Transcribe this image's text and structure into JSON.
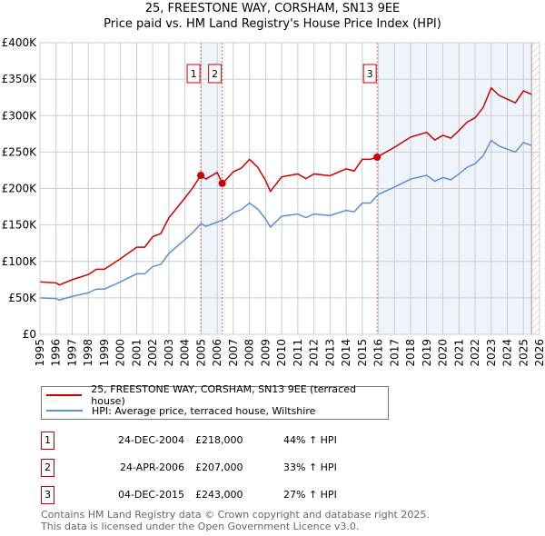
{
  "chart_data": {
    "type": "line",
    "title": "25, FREESTONE WAY, CORSHAM, SN13 9EE",
    "subtitle": "Price paid vs. HM Land Registry's House Price Index (HPI)",
    "xlim": [
      1995,
      2026
    ],
    "ylim": [
      0,
      400000
    ],
    "yticks": [
      {
        "v": 0,
        "label": "£0"
      },
      {
        "v": 50000,
        "label": "£50K"
      },
      {
        "v": 100000,
        "label": "£100K"
      },
      {
        "v": 150000,
        "label": "£150K"
      },
      {
        "v": 200000,
        "label": "£200K"
      },
      {
        "v": 250000,
        "label": "£250K"
      },
      {
        "v": 300000,
        "label": "£300K"
      },
      {
        "v": 350000,
        "label": "£350K"
      },
      {
        "v": 400000,
        "label": "£400K"
      }
    ],
    "xticks": [
      "1995",
      "1996",
      "1997",
      "1998",
      "1999",
      "2000",
      "2001",
      "2002",
      "2003",
      "2004",
      "2005",
      "2006",
      "2007",
      "2008",
      "2009",
      "2010",
      "2011",
      "2012",
      "2013",
      "2014",
      "2015",
      "2016",
      "2017",
      "2018",
      "2019",
      "2020",
      "2021",
      "2022",
      "2023",
      "2024",
      "2025",
      "2026"
    ],
    "grid": true,
    "series": [
      {
        "name": "25, FREESTONE WAY, CORSHAM, SN13 9EE (terraced house)",
        "color": "#cc0000",
        "x": [
          1995,
          1996,
          1996.2,
          1997,
          1998,
          1998.5,
          1999,
          2000,
          2001,
          2001.5,
          2002,
          2002.5,
          2003,
          2004,
          2004.5,
          2004.98,
          2005.3,
          2006,
          2006.31,
          2006.5,
          2007,
          2007.5,
          2008,
          2008.5,
          2009,
          2009.3,
          2010,
          2011,
          2011.5,
          2012,
          2013,
          2014,
          2014.5,
          2015,
          2015.5,
          2015.92,
          2016,
          2017,
          2018,
          2019,
          2019.5,
          2020,
          2020.5,
          2021,
          2021.5,
          2022,
          2022.5,
          2023,
          2023.5,
          2024,
          2024.5,
          2025,
          2025.5
        ],
        "y": [
          72000,
          70500,
          67700,
          74900,
          82000,
          89300,
          89300,
          103700,
          119500,
          119500,
          133900,
          138200,
          159800,
          187200,
          201600,
          218000,
          213000,
          222000,
          207000,
          211000,
          223000,
          228000,
          240000,
          229500,
          211000,
          196000,
          216000,
          220000,
          213500,
          220000,
          217500,
          227000,
          224000,
          240000,
          240000,
          243000,
          244000,
          256500,
          270500,
          277000,
          266500,
          273000,
          269000,
          279500,
          291000,
          297000,
          311000,
          338000,
          327500,
          322500,
          317500,
          334000,
          329000
        ]
      },
      {
        "name": "HPI: Average price, terraced house, Wiltshire",
        "color": "#5b8fd6",
        "x": [
          1995,
          1996,
          1996.2,
          1997,
          1998,
          1998.5,
          1999,
          2000,
          2001,
          2001.5,
          2002,
          2002.5,
          2003,
          2004,
          2004.5,
          2005,
          2005.3,
          2006,
          2006.5,
          2007,
          2007.5,
          2008,
          2008.5,
          2009,
          2009.3,
          2010,
          2011,
          2011.5,
          2012,
          2013,
          2014,
          2014.5,
          2015,
          2015.5,
          2016,
          2017,
          2018,
          2019,
          2019.5,
          2020,
          2020.5,
          2021,
          2021.5,
          2022,
          2022.5,
          2023,
          2023.5,
          2024,
          2024.5,
          2025,
          2025.5
        ],
        "y": [
          50000,
          49000,
          47000,
          52000,
          57000,
          62000,
          62000,
          72000,
          83000,
          83000,
          93000,
          96000,
          111000,
          130000,
          140000,
          152000,
          148000,
          154000,
          158000,
          167000,
          171000,
          180000,
          172000,
          158000,
          147000,
          162000,
          165000,
          160000,
          165000,
          163000,
          170000,
          168000,
          180000,
          180000,
          192000,
          202000,
          213000,
          218000,
          210000,
          215000,
          212000,
          220000,
          229000,
          234000,
          245000,
          266000,
          258000,
          254000,
          250000,
          263000,
          259000
        ]
      }
    ],
    "sales": [
      {
        "id": "1",
        "x": 2004.98,
        "y": 218000,
        "date": "24-DEC-2004",
        "price": "£218,000",
        "hpi": "44% ↑ HPI"
      },
      {
        "id": "2",
        "x": 2006.31,
        "y": 207000,
        "date": "24-APR-2006",
        "price": "£207,000",
        "hpi": "33% ↑ HPI"
      },
      {
        "id": "3",
        "x": 2015.92,
        "y": 243000,
        "date": "04-DEC-2015",
        "price": "£243,000",
        "hpi": "27% ↑ HPI"
      }
    ],
    "shaded": [
      [
        2004.98,
        2006.31
      ],
      [
        2015.92,
        2025.5
      ]
    ],
    "data_end": 2025.5
  },
  "footer": {
    "line1": "Contains HM Land Registry data © Crown copyright and database right 2025.",
    "line2": "This data is licensed under the Open Government Licence v3.0."
  }
}
